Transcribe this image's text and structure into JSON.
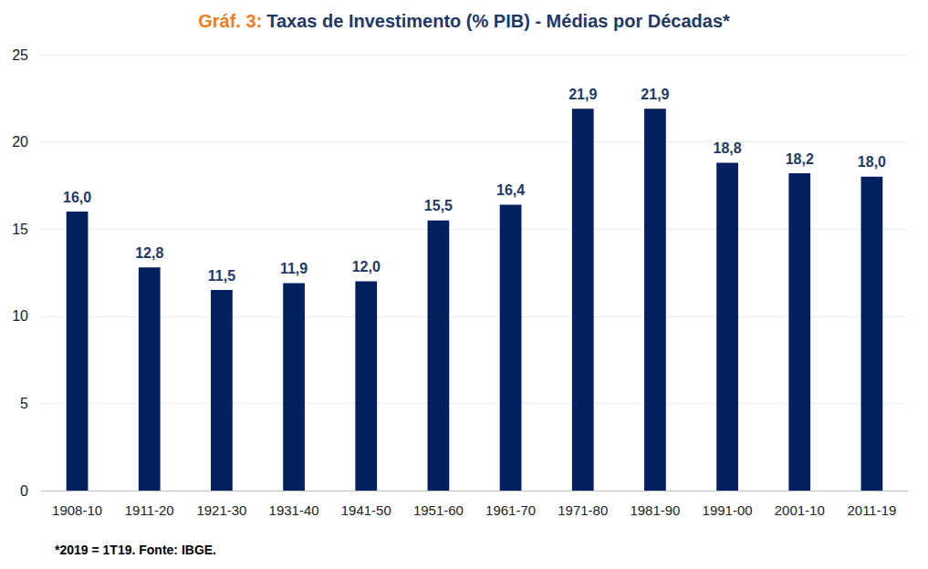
{
  "chart_data": {
    "type": "bar",
    "title": "Gráf. 3: Taxas de Investimento (% PIB) - Médias por Décadas*",
    "annotations": [
      "*2019 = 1T19. Fonte: IBGE."
    ],
    "categories": [
      "1908-10",
      "1911-20",
      "1921-30",
      "1931-40",
      "1941-50",
      "1951-60",
      "1961-70",
      "1971-80",
      "1981-90",
      "1991-00",
      "2001-10",
      "2011-19"
    ],
    "values": [
      16.0,
      12.8,
      11.5,
      11.9,
      12.0,
      15.5,
      16.4,
      21.9,
      21.9,
      18.8,
      18.2,
      18.0
    ],
    "value_labels": [
      "16,0",
      "12,8",
      "11,5",
      "11,9",
      "12,0",
      "15,5",
      "16,4",
      "21,9",
      "21,9",
      "18,8",
      "18,2",
      "18,0"
    ],
    "color": "#002060",
    "ylim": [
      0,
      25
    ],
    "yticks": [
      0,
      5,
      10,
      15,
      20,
      25
    ],
    "grid": true,
    "data_labels": true
  }
}
